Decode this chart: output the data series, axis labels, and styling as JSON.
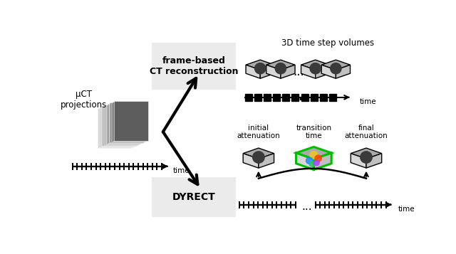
{
  "bg_color": "#ffffff",
  "frame_based_box_color": "#ebebeb",
  "dyrect_box_color": "#ebebeb",
  "title_top": "3D time step volumes",
  "label_frame": "frame-based\nCT reconstruction",
  "label_dyrect": "DYRECT",
  "label_mu_ct": "μCT\nprojections",
  "label_time": "time",
  "label_initial": "initial\nattenuation",
  "label_transition": "transition\ntime",
  "label_final": "final\nattenuation",
  "figsize": [
    6.4,
    3.57
  ],
  "dpi": 100,
  "cube_top_color": "#aaaaaa",
  "cube_left_color": "#d8d8d8",
  "cube_right_color": "#c0c0c0",
  "cube_dark_circle": "#3a3a3a",
  "green_color": "#00bb00",
  "arrow_lw": 3.0
}
